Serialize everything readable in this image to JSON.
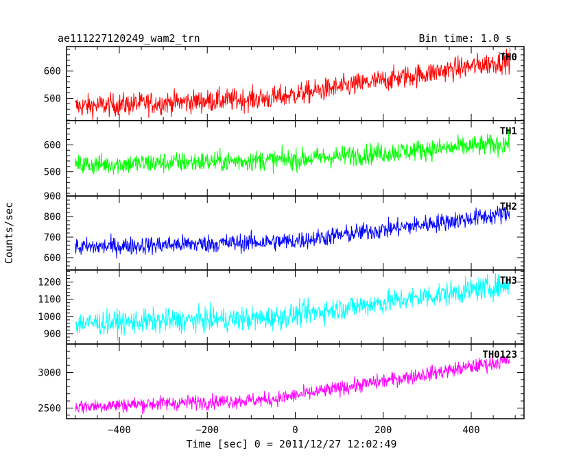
{
  "header": {
    "title": "ae111227120249_wam2_trn",
    "bin_time": "Bin time: 1.0 s"
  },
  "chart_data": {
    "type": "line",
    "xlabel": "Time [sec] 0 = 2011/12/27 12:02:49",
    "ylabel": "Counts/sec",
    "xlim": [
      -520,
      520
    ],
    "x_ticks": [
      -400,
      -200,
      0,
      200,
      400
    ],
    "x_tick_labels": [
      "−400",
      "−200",
      "0",
      "200",
      "400"
    ],
    "x_range": [
      -500,
      488
    ],
    "panels": [
      {
        "name": "TH0",
        "color": "#ff0000",
        "ylim": [
          418,
          690
        ],
        "y_ticks": [
          500,
          600
        ],
        "start": 470,
        "rise": 30,
        "break": 0.45,
        "end": 640,
        "noise": 30,
        "note": "trend_start_end_counts"
      },
      {
        "name": "TH1",
        "color": "#00ff00",
        "ylim": [
          410,
          690
        ],
        "y_ticks": [
          500,
          600
        ],
        "start": 525,
        "rise": 20,
        "break": 0.5,
        "end": 605,
        "noise": 28
      },
      {
        "name": "TH2",
        "color": "#0000ff",
        "ylim": [
          540,
          900
        ],
        "y_ticks": [
          600,
          700,
          800,
          900
        ],
        "start": 650,
        "rise": 30,
        "break": 0.5,
        "end": 815,
        "noise": 32
      },
      {
        "name": "TH3",
        "color": "#00ffff",
        "ylim": [
          840,
          1270
        ],
        "y_ticks": [
          900,
          1000,
          1100,
          1200
        ],
        "start": 960,
        "rise": 30,
        "break": 0.45,
        "end": 1185,
        "noise": 50
      },
      {
        "name": "TH0123",
        "color": "#ff00ff",
        "ylim": [
          2350,
          3400
        ],
        "y_ticks": [
          2500,
          3000
        ],
        "start": 2520,
        "rise": 100,
        "break": 0.45,
        "end": 3170,
        "noise": 75
      }
    ]
  }
}
